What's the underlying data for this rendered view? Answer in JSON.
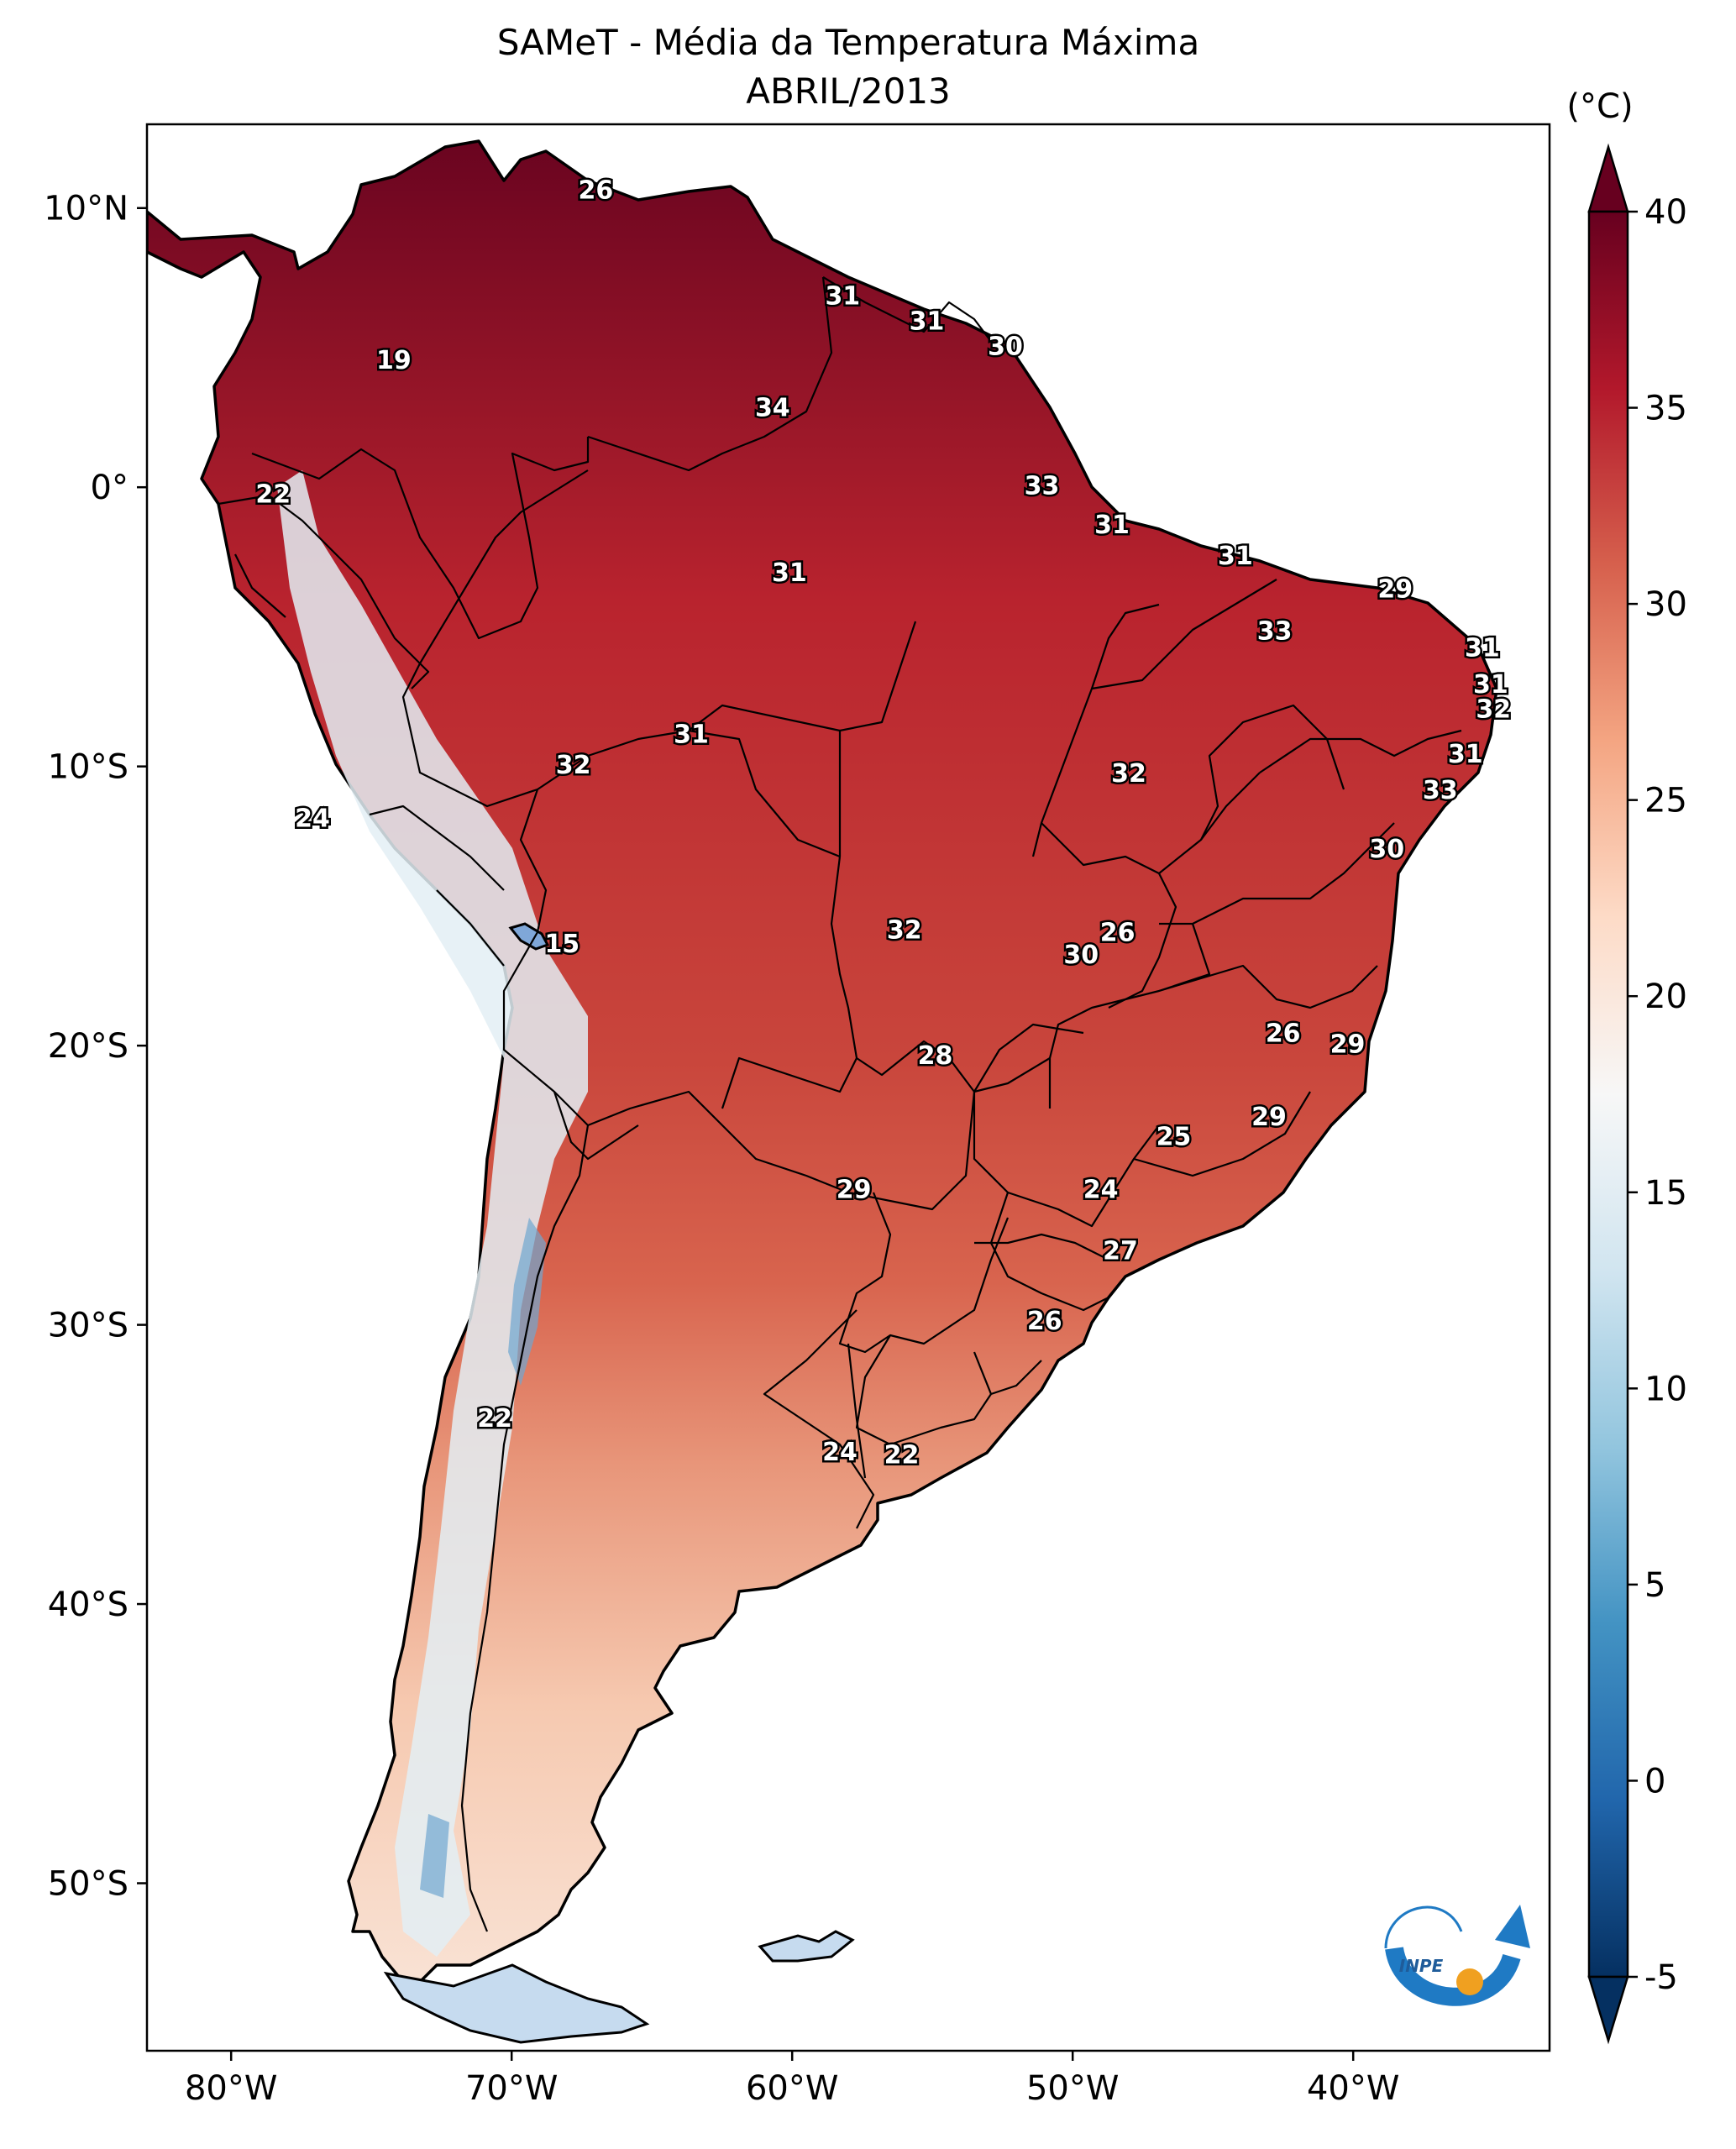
{
  "title": {
    "line1": "SAMeT - Média da Temperatura Máxima",
    "line2": "ABRIL/2013"
  },
  "map": {
    "lon_ticks": [
      "80°W",
      "70°W",
      "60°W",
      "50°W",
      "40°W"
    ],
    "lat_ticks": [
      "10°N",
      "0°",
      "10°S",
      "20°S",
      "30°S",
      "40°S",
      "50°S"
    ],
    "lon_range": [
      -83,
      -33
    ],
    "lat_range": [
      -56,
      13
    ]
  },
  "labels": [
    {
      "text": "26",
      "lon": -67.0,
      "lat": 10.6
    },
    {
      "text": "19",
      "lon": -74.2,
      "lat": 4.5
    },
    {
      "text": "22",
      "lon": -78.5,
      "lat": -0.3
    },
    {
      "text": "31",
      "lon": -58.2,
      "lat": 6.8
    },
    {
      "text": "31",
      "lon": -55.2,
      "lat": 5.9
    },
    {
      "text": "30",
      "lon": -52.4,
      "lat": 5.0
    },
    {
      "text": "34",
      "lon": -60.7,
      "lat": 2.8
    },
    {
      "text": "33",
      "lon": -51.1,
      "lat": 0.0
    },
    {
      "text": "31",
      "lon": -48.6,
      "lat": -1.4
    },
    {
      "text": "31",
      "lon": -60.1,
      "lat": -3.1
    },
    {
      "text": "31",
      "lon": -44.2,
      "lat": -2.5
    },
    {
      "text": "29",
      "lon": -38.5,
      "lat": -3.7
    },
    {
      "text": "33",
      "lon": -42.8,
      "lat": -5.2
    },
    {
      "text": "31",
      "lon": -35.4,
      "lat": -5.8
    },
    {
      "text": "31",
      "lon": -35.1,
      "lat": -7.1
    },
    {
      "text": "32",
      "lon": -35.0,
      "lat": -8.0
    },
    {
      "text": "31",
      "lon": -36.0,
      "lat": -9.6
    },
    {
      "text": "31",
      "lon": -63.6,
      "lat": -8.9
    },
    {
      "text": "32",
      "lon": -67.8,
      "lat": -10.0
    },
    {
      "text": "32",
      "lon": -48.0,
      "lat": -10.3
    },
    {
      "text": "33",
      "lon": -36.9,
      "lat": -10.9
    },
    {
      "text": "24",
      "lon": -77.1,
      "lat": -11.9
    },
    {
      "text": "30",
      "lon": -38.8,
      "lat": -13.0
    },
    {
      "text": "32",
      "lon": -56.0,
      "lat": -15.9
    },
    {
      "text": "26",
      "lon": -48.4,
      "lat": -16.0
    },
    {
      "text": "30",
      "lon": -49.7,
      "lat": -16.8
    },
    {
      "text": "15",
      "lon": -68.2,
      "lat": -16.4
    },
    {
      "text": "26",
      "lon": -42.5,
      "lat": -19.6
    },
    {
      "text": "29",
      "lon": -40.2,
      "lat": -20.0
    },
    {
      "text": "28",
      "lon": -54.9,
      "lat": -20.4
    },
    {
      "text": "29",
      "lon": -43.0,
      "lat": -22.6
    },
    {
      "text": "25",
      "lon": -46.4,
      "lat": -23.3
    },
    {
      "text": "29",
      "lon": -57.8,
      "lat": -25.2
    },
    {
      "text": "24",
      "lon": -49.0,
      "lat": -25.2
    },
    {
      "text": "27",
      "lon": -48.3,
      "lat": -27.4
    },
    {
      "text": "26",
      "lon": -51.0,
      "lat": -29.9
    },
    {
      "text": "22",
      "lon": -70.6,
      "lat": -33.4
    },
    {
      "text": "24",
      "lon": -58.3,
      "lat": -34.6
    },
    {
      "text": "22",
      "lon": -56.1,
      "lat": -34.7
    }
  ],
  "colorbar": {
    "unit": "(°C)",
    "ticks": [
      "-5",
      "0",
      "5",
      "10",
      "15",
      "20",
      "25",
      "30",
      "35",
      "40"
    ],
    "range": [
      -5,
      40
    ],
    "colors": [
      "#053061",
      "#2166ac",
      "#4393c3",
      "#92c5de",
      "#d1e5f0",
      "#f7f7f7",
      "#fddbc7",
      "#f4a582",
      "#d6604d",
      "#b2182b",
      "#67001f"
    ]
  },
  "logo": {
    "text": "INPE",
    "colors": {
      "blue": "#1f7ac4",
      "orange": "#f0a020"
    }
  }
}
